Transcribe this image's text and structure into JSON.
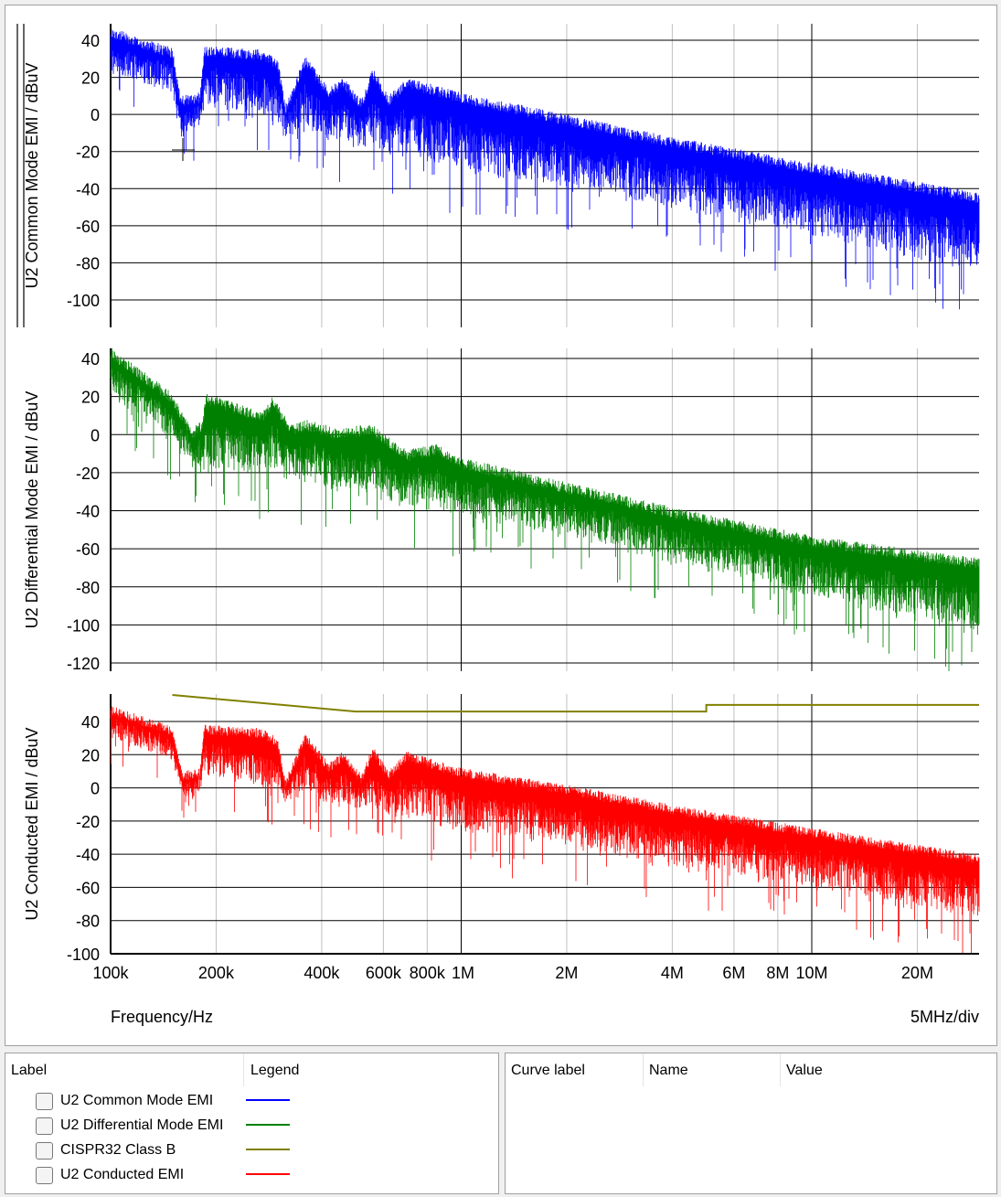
{
  "chart_data": [
    {
      "type": "line",
      "ylabel": "U2 Common Mode EMI / dBuV",
      "x_scale": "log",
      "xlim": [
        100000,
        30000000
      ],
      "ylim": [
        -115,
        49
      ],
      "yticks": [
        "40",
        "20",
        "0",
        "-20",
        "-40",
        "-60",
        "-80",
        "-100"
      ],
      "ytick_values": [
        40,
        20,
        0,
        -20,
        -40,
        -60,
        -80,
        -100
      ],
      "grid": true,
      "series": [
        {
          "name": "U2 Common Mode EMI",
          "color": "#0000ff",
          "upper_envelope": [
            [
              100000,
              47
            ],
            [
              150000,
              36
            ],
            [
              158000,
              10
            ],
            [
              180000,
              12
            ],
            [
              185000,
              37
            ],
            [
              270000,
              35
            ],
            [
              300000,
              30
            ],
            [
              315000,
              5
            ],
            [
              360000,
              32
            ],
            [
              420000,
              14
            ],
            [
              460000,
              20
            ],
            [
              520000,
              8
            ],
            [
              560000,
              25
            ],
            [
              620000,
              10
            ],
            [
              700000,
              20
            ],
            [
              1000000,
              12
            ],
            [
              2000000,
              0
            ],
            [
              4000000,
              -12
            ],
            [
              10000000,
              -26
            ],
            [
              30000000,
              -42
            ]
          ],
          "lower_envelope": [
            [
              100000,
              20
            ],
            [
              150000,
              10
            ],
            [
              160000,
              -15
            ],
            [
              185000,
              0
            ],
            [
              300000,
              -10
            ],
            [
              500000,
              -20
            ],
            [
              1000000,
              -35
            ],
            [
              2000000,
              -45
            ],
            [
              4000000,
              -55
            ],
            [
              10000000,
              -70
            ],
            [
              30000000,
              -90
            ]
          ]
        }
      ]
    },
    {
      "type": "line",
      "ylabel": "U2 Differential Mode EMI / dBuV",
      "x_scale": "log",
      "xlim": [
        100000,
        30000000
      ],
      "ylim": [
        -124,
        45
      ],
      "yticks": [
        "40",
        "20",
        "0",
        "-20",
        "-40",
        "-60",
        "-80",
        "-100",
        "-120"
      ],
      "ytick_values": [
        40,
        20,
        0,
        -20,
        -40,
        -60,
        -80,
        -100,
        -120
      ],
      "grid": true,
      "series": [
        {
          "name": "U2 Differential Mode EMI",
          "color": "#008000",
          "upper_envelope": [
            [
              100000,
              46
            ],
            [
              150000,
              22
            ],
            [
              170000,
              3
            ],
            [
              183000,
              8
            ],
            [
              187000,
              22
            ],
            [
              270000,
              12
            ],
            [
              290000,
              20
            ],
            [
              330000,
              5
            ],
            [
              360000,
              8
            ],
            [
              450000,
              3
            ],
            [
              550000,
              6
            ],
            [
              700000,
              -8
            ],
            [
              850000,
              -5
            ],
            [
              1000000,
              -12
            ],
            [
              2000000,
              -25
            ],
            [
              4000000,
              -38
            ],
            [
              10000000,
              -53
            ],
            [
              30000000,
              -65
            ]
          ],
          "lower_envelope": [
            [
              100000,
              20
            ],
            [
              150000,
              -5
            ],
            [
              190000,
              -25
            ],
            [
              300000,
              -25
            ],
            [
              500000,
              -35
            ],
            [
              1000000,
              -45
            ],
            [
              2000000,
              -55
            ],
            [
              4000000,
              -70
            ],
            [
              10000000,
              -88
            ],
            [
              30000000,
              -112
            ]
          ]
        }
      ]
    },
    {
      "type": "line",
      "ylabel": "U2 Conducted EMI / dBuV",
      "xlabel": "Frequency/Hz",
      "x_division_label": "5MHz/div",
      "x_scale": "log",
      "xlim": [
        100000,
        30000000
      ],
      "ylim": [
        -100,
        56
      ],
      "yticks": [
        "40",
        "20",
        "0",
        "-20",
        "-40",
        "-60",
        "-80",
        "-100"
      ],
      "ytick_values": [
        40,
        20,
        0,
        -20,
        -40,
        -60,
        -80,
        -100
      ],
      "xticks": [
        "100k",
        "200k",
        "400k",
        "600k",
        "800k",
        "1M",
        "2M",
        "4M",
        "6M",
        "8M",
        "10M",
        "20M"
      ],
      "xtick_values": [
        100000,
        200000,
        400000,
        600000,
        800000,
        1000000,
        2000000,
        4000000,
        6000000,
        8000000,
        10000000,
        20000000
      ],
      "grid": true,
      "series": [
        {
          "name": "U2 Conducted EMI",
          "color": "#ff0000",
          "upper_envelope": [
            [
              100000,
              50
            ],
            [
              150000,
              37
            ],
            [
              160000,
              10
            ],
            [
              180000,
              12
            ],
            [
              185000,
              38
            ],
            [
              270000,
              36
            ],
            [
              300000,
              30
            ],
            [
              315000,
              5
            ],
            [
              360000,
              33
            ],
            [
              420000,
              15
            ],
            [
              460000,
              22
            ],
            [
              520000,
              8
            ],
            [
              560000,
              26
            ],
            [
              620000,
              10
            ],
            [
              700000,
              22
            ],
            [
              1000000,
              12
            ],
            [
              2000000,
              2
            ],
            [
              4000000,
              -10
            ],
            [
              10000000,
              -24
            ],
            [
              30000000,
              -40
            ]
          ],
          "lower_envelope": [
            [
              100000,
              30
            ],
            [
              150000,
              15
            ],
            [
              165000,
              -10
            ],
            [
              185000,
              5
            ],
            [
              300000,
              -5
            ],
            [
              500000,
              -15
            ],
            [
              1000000,
              -30
            ],
            [
              2000000,
              -40
            ],
            [
              4000000,
              -52
            ],
            [
              10000000,
              -65
            ],
            [
              30000000,
              -85
            ]
          ]
        },
        {
          "name": "CISPR32 Class B",
          "color": "#808000",
          "points": [
            [
              150000,
              56
            ],
            [
              500000,
              46
            ],
            [
              5000000,
              46
            ],
            [
              5000000,
              50
            ],
            [
              30000000,
              50
            ]
          ]
        }
      ]
    }
  ],
  "legend_panel": {
    "headers": {
      "label": "Label",
      "legend": "Legend"
    },
    "items": [
      {
        "label": "U2 Common Mode EMI",
        "color": "#0000ff",
        "checked": false
      },
      {
        "label": "U2 Differential Mode EMI",
        "color": "#008000",
        "checked": false
      },
      {
        "label": "CISPR32 Class B",
        "color": "#808000",
        "checked": false
      },
      {
        "label": "U2 Conducted EMI",
        "color": "#ff0000",
        "checked": false
      }
    ]
  },
  "cursor_panel": {
    "headers": {
      "curve_label": "Curve label",
      "name": "Name",
      "value": "Value"
    }
  }
}
